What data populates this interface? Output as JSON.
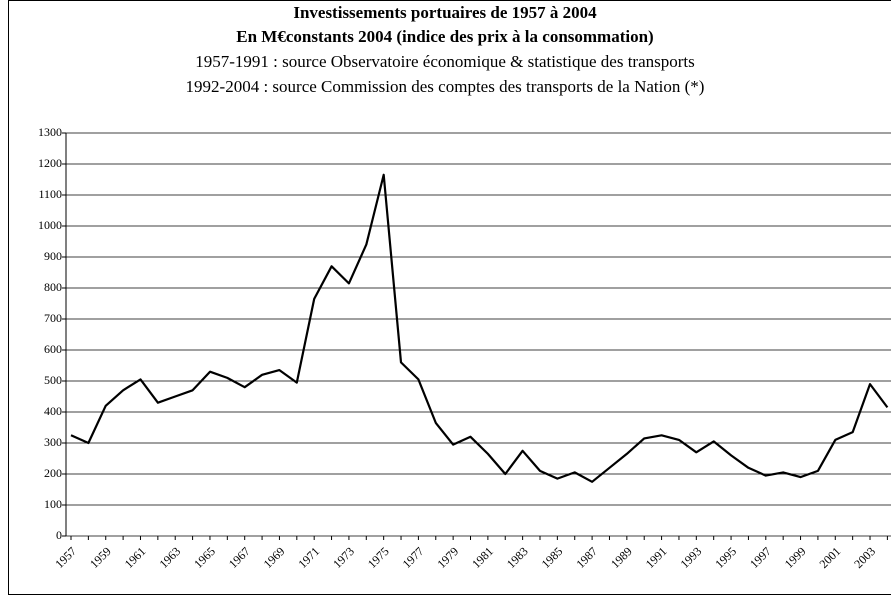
{
  "chart_data": {
    "type": "line",
    "title": "Investissements portuaires de 1957 à 2004",
    "subtitle": "En M€constants 2004 (indice des prix à la consommation)",
    "source_notes": [
      "1957-1991 : source Observatoire économique & statistique des transports",
      "1992-2004 : source Commission des comptes des transports de la Nation (*)"
    ],
    "categories": [
      "1957",
      null,
      "1959",
      null,
      "1961",
      null,
      "1963",
      null,
      "1965",
      null,
      "1967",
      null,
      "1969",
      null,
      "1971",
      null,
      "1973",
      null,
      "1975",
      null,
      "1977",
      null,
      "1979",
      null,
      "1981",
      null,
      "1983",
      null,
      "1985",
      null,
      "1987",
      null,
      "1989",
      null,
      "1991",
      null,
      "1993",
      null,
      "1995",
      null,
      "1997",
      null,
      "1999",
      null,
      "2001",
      null,
      "2003",
      null
    ],
    "values": [
      325,
      300,
      420,
      470,
      505,
      430,
      450,
      470,
      530,
      510,
      480,
      520,
      535,
      495,
      765,
      870,
      815,
      940,
      1165,
      560,
      505,
      365,
      295,
      320,
      265,
      200,
      275,
      210,
      185,
      205,
      175,
      220,
      265,
      315,
      325,
      310,
      270,
      305,
      260,
      220,
      195,
      205,
      190,
      210,
      310,
      335,
      490,
      415
    ],
    "color": "#000000",
    "ylim": [
      0,
      1300
    ],
    "yticks": [
      0,
      100,
      200,
      300,
      400,
      500,
      600,
      700,
      800,
      900,
      1000,
      1100,
      1200,
      1300
    ],
    "grid": true
  }
}
